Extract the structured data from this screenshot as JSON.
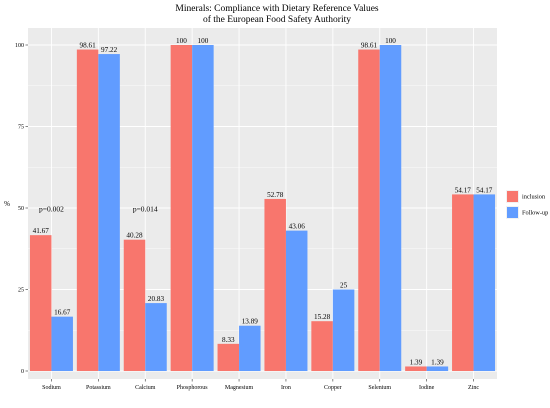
{
  "chart_data": {
    "type": "bar",
    "title_line1": "Minerals: Compliance with Dietary Reference Values",
    "title_line2": "of the European Food Safety Authority",
    "xlabel": "",
    "ylabel": "%",
    "ylim": [
      0,
      100
    ],
    "yticks": [
      0,
      25,
      50,
      75,
      100
    ],
    "ytick_labels": [
      "0",
      "25",
      "50",
      "75",
      "100"
    ],
    "grid": true,
    "legend_position": "right",
    "categories": [
      "Sodium",
      "Potassium",
      "Calcium",
      "Phosphorous",
      "Magnesium",
      "Iron",
      "Copper",
      "Selenium",
      "Iodine",
      "Zinc"
    ],
    "series": [
      {
        "name": "inclusion",
        "color": "#F8766D",
        "values": [
          41.67,
          98.61,
          40.28,
          100,
          8.33,
          52.78,
          15.28,
          98.61,
          1.39,
          54.17
        ],
        "labels": [
          "41.67",
          "98.61",
          "40.28",
          "100",
          "8.33",
          "52.78",
          "15.28",
          "98.61",
          "1.39",
          "54.17"
        ]
      },
      {
        "name": "Follow-up",
        "color": "#619CFF",
        "values": [
          16.67,
          97.22,
          20.83,
          100,
          13.89,
          43.06,
          25,
          100,
          1.39,
          54.17
        ],
        "labels": [
          "16.67",
          "97.22",
          "20.83",
          "100",
          "13.89",
          "43.06",
          "25",
          "100",
          "1.39",
          "54.17"
        ]
      }
    ],
    "annotations": [
      {
        "text": "p=0.002",
        "category_index": 0,
        "y": 49
      },
      {
        "text": "p=0.014",
        "category_index": 2,
        "y": 49
      }
    ],
    "panel_background": "#EBEBEB",
    "grid_color": "#FFFFFF"
  }
}
